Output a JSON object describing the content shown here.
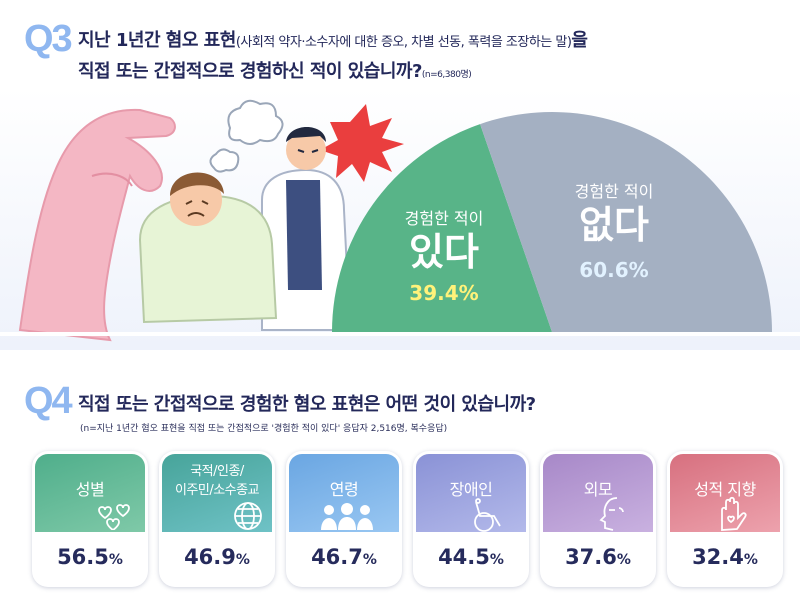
{
  "q3": {
    "num": "Q3",
    "text_a": "지난 1년간 혐오 표현",
    "text_paren": "(사회적 약자·소수자에 대한 증오, 차별 선동, 폭력을 조장하는 말)",
    "text_b": "을",
    "line2": "직접 또는 간접적으로 경험하신 적이 있습니까?",
    "n_note": "(n=6,380명)"
  },
  "q4": {
    "num": "Q4",
    "text": "직접 또는 간접적으로 경험한 혐오 표현은 어떤 것이 있습니까?",
    "n_note": "(n=지난 1년간 혐오 표현을 직접 또는 간접적으로 '경험한 적이 있다' 응답자 2,516명, 복수응답)"
  },
  "chart_data": [
    {
      "type": "pie",
      "subtype": "half-donut",
      "slices": [
        {
          "label_top": "경험한 적이",
          "label_main": "있다",
          "value": 39.4,
          "display": "39.4%",
          "color": "#58b488"
        },
        {
          "label_top": "경험한 적이",
          "label_main": "없다",
          "value": 60.6,
          "display": "60.6%",
          "color": "#a4b0c2"
        }
      ],
      "value_colors": {
        "yes": "#fff27a",
        "no": "#dff0ff"
      }
    },
    {
      "type": "bar",
      "categories": [
        "성별",
        "국적/인종/이주민/소수종교",
        "연령",
        "장애인",
        "외모",
        "성적 지향"
      ],
      "values": [
        56.5,
        46.9,
        46.7,
        44.5,
        37.6,
        32.4
      ],
      "unit": "%"
    }
  ],
  "cards": [
    {
      "cat_lines": [
        "성별"
      ],
      "val": "56.5",
      "unit": "%",
      "color_a": "#4fae8b",
      "color_b": "#7fc9a8",
      "icon": "hearts-icon"
    },
    {
      "cat_lines": [
        "국적/인종/",
        "이주민/소수종교"
      ],
      "val": "46.9",
      "unit": "%",
      "color_a": "#47a49a",
      "color_b": "#6fc2c6",
      "icon": "globe-icon"
    },
    {
      "cat_lines": [
        "연령"
      ],
      "val": "46.7",
      "unit": "%",
      "color_a": "#6aa6e2",
      "color_b": "#99c7f2",
      "icon": "people-icon"
    },
    {
      "cat_lines": [
        "장애인"
      ],
      "val": "44.5",
      "unit": "%",
      "color_a": "#8a92d6",
      "color_b": "#b3b9ea",
      "icon": "wheelchair-icon"
    },
    {
      "cat_lines": [
        "외모"
      ],
      "val": "37.6",
      "unit": "%",
      "color_a": "#a788c8",
      "color_b": "#c9b1e0",
      "icon": "face-icon"
    },
    {
      "cat_lines": [
        "성적 지향"
      ],
      "val": "32.4",
      "unit": "%",
      "color_a": "#d7707f",
      "color_b": "#eda2ad",
      "icon": "hand-heart-icon"
    }
  ]
}
